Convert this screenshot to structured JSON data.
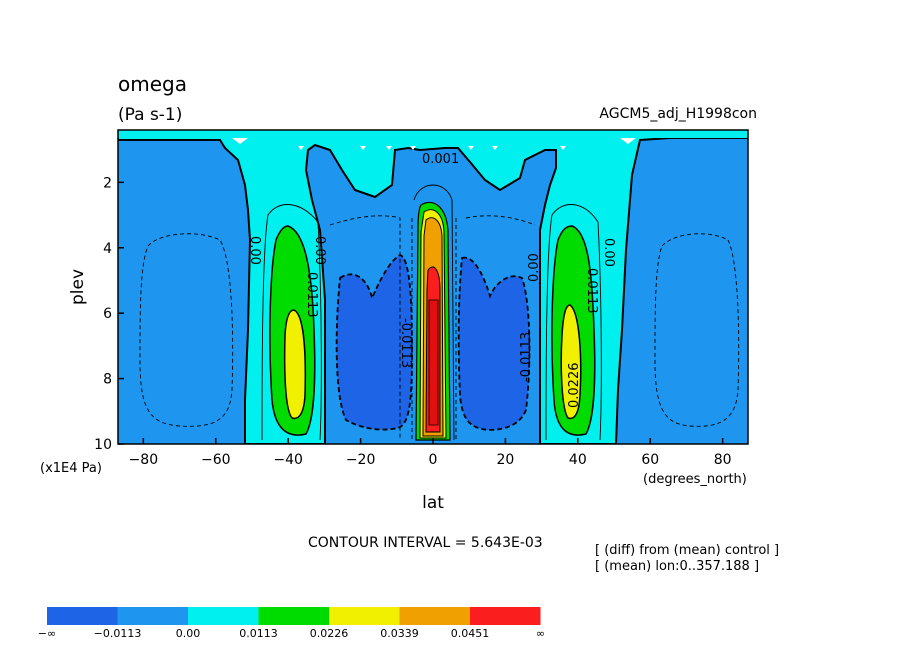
{
  "header": {
    "title": "omega",
    "units": "(Pa s-1)",
    "experiment": "AGCM5_adj_H1998con"
  },
  "axes": {
    "xlabel": "lat",
    "ylabel": "plev",
    "x_unit": "(degrees_north)",
    "y_unit": "(x1E4 Pa)",
    "x_ticks": [
      "−80",
      "−60",
      "−40",
      "−20",
      "0",
      "20",
      "40",
      "60",
      "80"
    ],
    "y_ticks": [
      "2",
      "4",
      "6",
      "8",
      "10"
    ]
  },
  "footer": {
    "contour_interval": "CONTOUR INTERVAL = 5.643E-03",
    "note1": "[ (diff) from (mean) control ]",
    "note2": "[ (mean) lon:0..357.188 ]"
  },
  "contour_labels": {
    "zero": "0.00",
    "zero_top": "0.001",
    "neg": "-0.0113",
    "pos1": "0.0113",
    "pos2": "0.0226"
  },
  "colorbar": {
    "colors": [
      "#1e64e6",
      "#1e96f0",
      "#00f0f0",
      "#00dc00",
      "#f0f000",
      "#f0a000",
      "#fa1e1e"
    ],
    "labels": [
      "−∞",
      "−0.0113",
      "0.00",
      "0.0113",
      "0.0226",
      "0.0339",
      "0.0451",
      "∞"
    ]
  },
  "chart_data": {
    "type": "heatmap",
    "title": "omega",
    "subtitle": "(Pa s-1)",
    "xlabel": "lat",
    "ylabel": "plev",
    "xlim": [
      -87,
      87
    ],
    "ylim": [
      10,
      0.4
    ],
    "x_unit": "degrees_north",
    "y_unit": "x1E4 Pa",
    "contour_interval": 0.005643,
    "levels": [
      -0.0113,
      0.0,
      0.0113,
      0.0226,
      0.0339,
      0.0451
    ],
    "features": [
      {
        "lat_range": [
          -52,
          -30
        ],
        "plev_range": [
          3.0,
          9.5
        ],
        "max_value": 0.0226
      },
      {
        "lat_range": [
          -30,
          -5
        ],
        "plev_range": [
          4.5,
          9.2
        ],
        "min_value": -0.0113
      },
      {
        "lat_range": [
          -5,
          5
        ],
        "plev_range": [
          2.5,
          9.9
        ],
        "max_value": 0.0451
      },
      {
        "lat_range": [
          5,
          30
        ],
        "plev_range": [
          4.5,
          9.2
        ],
        "min_value": -0.0113
      },
      {
        "lat_range": [
          30,
          52
        ],
        "plev_range": [
          3.0,
          9.5
        ],
        "max_value": 0.0226
      }
    ]
  }
}
